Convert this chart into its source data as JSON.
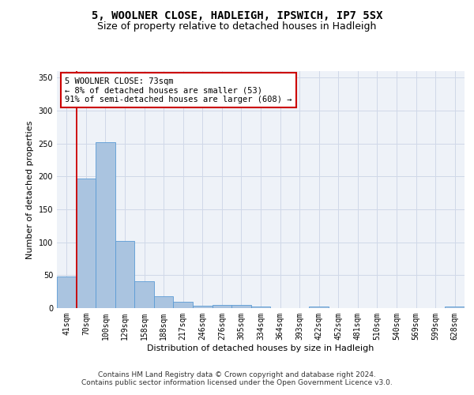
{
  "title": "5, WOOLNER CLOSE, HADLEIGH, IPSWICH, IP7 5SX",
  "subtitle": "Size of property relative to detached houses in Hadleigh",
  "xlabel": "Distribution of detached houses by size in Hadleigh",
  "ylabel": "Number of detached properties",
  "categories": [
    "41sqm",
    "70sqm",
    "100sqm",
    "129sqm",
    "158sqm",
    "188sqm",
    "217sqm",
    "246sqm",
    "276sqm",
    "305sqm",
    "334sqm",
    "364sqm",
    "393sqm",
    "422sqm",
    "452sqm",
    "481sqm",
    "510sqm",
    "540sqm",
    "569sqm",
    "599sqm",
    "628sqm"
  ],
  "values": [
    48,
    197,
    252,
    102,
    41,
    18,
    10,
    4,
    5,
    5,
    3,
    0,
    0,
    3,
    0,
    0,
    0,
    0,
    0,
    0,
    3
  ],
  "bar_color": "#aac4e0",
  "bar_edge_color": "#5b9bd5",
  "grid_color": "#d0d8e8",
  "background_color": "#eef2f8",
  "vline_color": "#cc0000",
  "vline_pos": 0.5,
  "annotation_lines": [
    "5 WOOLNER CLOSE: 73sqm",
    "← 8% of detached houses are smaller (53)",
    "91% of semi-detached houses are larger (608) →"
  ],
  "ann_box_color": "#cc0000",
  "ann_fill_color": "#ffffff",
  "ylim": [
    0,
    360
  ],
  "yticks": [
    0,
    50,
    100,
    150,
    200,
    250,
    300,
    350
  ],
  "footer_line1": "Contains HM Land Registry data © Crown copyright and database right 2024.",
  "footer_line2": "Contains public sector information licensed under the Open Government Licence v3.0.",
  "title_fontsize": 10,
  "subtitle_fontsize": 9,
  "ylabel_fontsize": 8,
  "xlabel_fontsize": 8,
  "tick_fontsize": 7,
  "ann_fontsize": 7.5,
  "footer_fontsize": 6.5
}
